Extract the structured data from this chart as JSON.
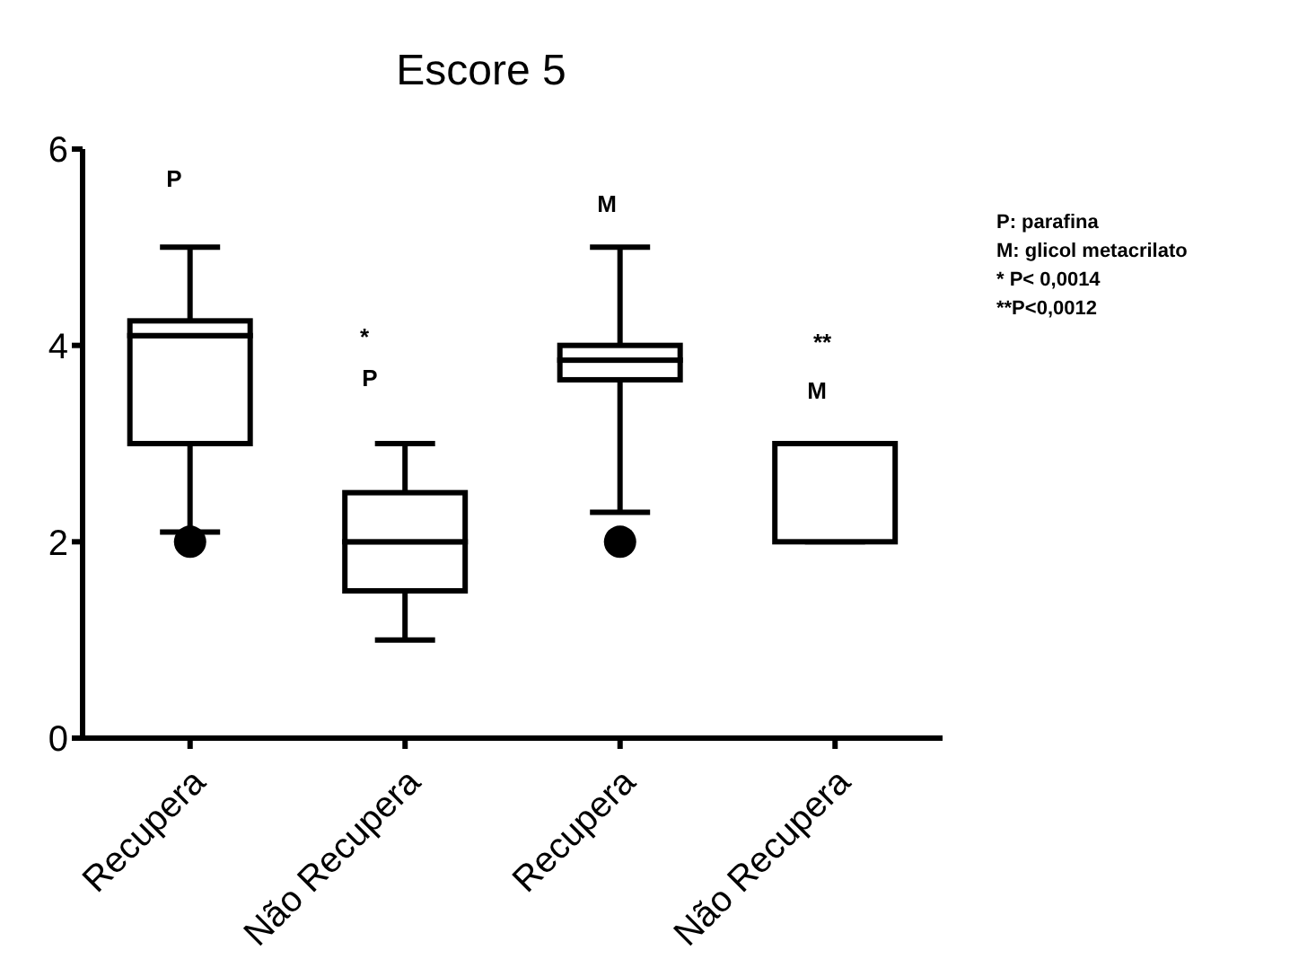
{
  "chart_data": {
    "type": "box",
    "title": "Escore 5",
    "categories": [
      "Recupera",
      "Não Recupera",
      "Recupera",
      "Não Recupera"
    ],
    "boxes": [
      {
        "low": 2.1,
        "q1": 3,
        "median": 4.1,
        "q3": 4.25,
        "high": 5,
        "outliers": [
          2
        ]
      },
      {
        "low": 1,
        "q1": 1.5,
        "median": 2,
        "q3": 2.5,
        "high": 3
      },
      {
        "low": 2.3,
        "q1": 3.65,
        "median": 3.85,
        "q3": 4,
        "high": 5,
        "outliers": [
          2
        ]
      },
      {
        "low": 2,
        "q1": 2,
        "median": 2,
        "q3": 3,
        "high": 3
      }
    ],
    "ylim": [
      0,
      6
    ],
    "yticks": [
      0,
      2,
      4,
      6
    ],
    "grid": false,
    "annotations": [
      "P",
      "*",
      "P",
      "M",
      "**",
      "M",
      "P: parafina",
      "M: glicol metacrilato",
      "* P< 0,0014",
      "**P<0,0012"
    ]
  }
}
